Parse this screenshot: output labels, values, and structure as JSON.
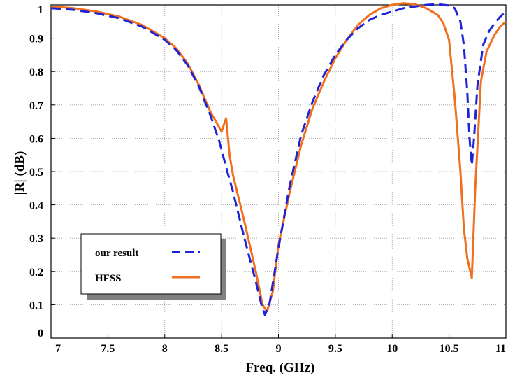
{
  "chart_data": {
    "type": "line",
    "xlabel": "Freq. (GHz)",
    "ylabel": "|R| (dB)",
    "xlim": [
      7,
      11
    ],
    "ylim": [
      0,
      1
    ],
    "xticks": [
      "7",
      "7.5",
      "8",
      "8.5",
      "9",
      "9.5",
      "10",
      "10.5",
      "11"
    ],
    "yticks": [
      "0",
      "0.1",
      "0.2",
      "0.3",
      "0.4",
      "0.5",
      "0.6",
      "0.7",
      "0.8",
      "0.9",
      "1"
    ],
    "grid": true,
    "legend_position": "lower-left",
    "series": [
      {
        "name": "our result",
        "color": "#1f23d6",
        "style": "dashed",
        "x": [
          7.0,
          7.2,
          7.4,
          7.6,
          7.8,
          8.0,
          8.1,
          8.2,
          8.3,
          8.4,
          8.48,
          8.55,
          8.6,
          8.7,
          8.8,
          8.85,
          8.88,
          8.92,
          9.0,
          9.1,
          9.2,
          9.3,
          9.4,
          9.5,
          9.6,
          9.7,
          9.8,
          9.9,
          10.0,
          10.1,
          10.2,
          10.3,
          10.4,
          10.45,
          10.5,
          10.55,
          10.6,
          10.63,
          10.66,
          10.68,
          10.7,
          10.72,
          10.75,
          10.8,
          10.85,
          10.9,
          10.95,
          11.0
        ],
        "values": [
          0.99,
          0.985,
          0.975,
          0.96,
          0.935,
          0.895,
          0.865,
          0.82,
          0.755,
          0.67,
          0.59,
          0.5,
          0.44,
          0.3,
          0.17,
          0.1,
          0.07,
          0.1,
          0.27,
          0.46,
          0.61,
          0.71,
          0.79,
          0.85,
          0.895,
          0.93,
          0.955,
          0.97,
          0.98,
          0.99,
          0.995,
          1.0,
          1.002,
          1.0,
          0.998,
          0.99,
          0.95,
          0.88,
          0.74,
          0.6,
          0.52,
          0.6,
          0.76,
          0.88,
          0.92,
          0.945,
          0.965,
          0.98
        ]
      },
      {
        "name": "HFSS",
        "color": "#f07020",
        "style": "solid",
        "x": [
          7.0,
          7.2,
          7.4,
          7.6,
          7.8,
          8.0,
          8.1,
          8.2,
          8.3,
          8.4,
          8.5,
          8.54,
          8.57,
          8.6,
          8.7,
          8.8,
          8.86,
          8.9,
          8.95,
          9.0,
          9.1,
          9.2,
          9.3,
          9.4,
          9.5,
          9.6,
          9.7,
          9.8,
          9.9,
          10.0,
          10.1,
          10.2,
          10.3,
          10.4,
          10.45,
          10.5,
          10.55,
          10.6,
          10.63,
          10.66,
          10.7,
          10.73,
          10.78,
          10.83,
          10.9,
          10.95,
          11.0
        ],
        "values": [
          0.995,
          0.99,
          0.98,
          0.965,
          0.94,
          0.9,
          0.87,
          0.825,
          0.76,
          0.68,
          0.62,
          0.66,
          0.55,
          0.49,
          0.35,
          0.2,
          0.1,
          0.08,
          0.14,
          0.28,
          0.44,
          0.58,
          0.69,
          0.77,
          0.84,
          0.895,
          0.94,
          0.97,
          0.99,
          1.0,
          1.005,
          1.002,
          0.99,
          0.97,
          0.945,
          0.895,
          0.72,
          0.5,
          0.33,
          0.24,
          0.18,
          0.45,
          0.77,
          0.86,
          0.91,
          0.935,
          0.95
        ]
      }
    ]
  }
}
